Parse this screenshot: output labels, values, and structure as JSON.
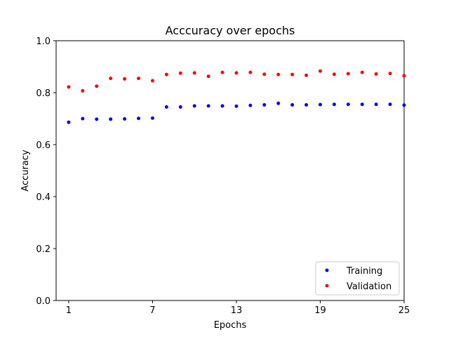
{
  "chart_data": {
    "type": "scatter",
    "title": "Acccuracy over epochs",
    "xlabel": "Epochs",
    "ylabel": "Accuracy",
    "xlim": [
      0.1,
      25
    ],
    "ylim": [
      0.0,
      1.0
    ],
    "xticks": [
      1,
      7,
      13,
      19,
      25
    ],
    "yticks": [
      0.0,
      0.2,
      0.4,
      0.6,
      0.8,
      1.0
    ],
    "xtick_labels": [
      "1",
      "7",
      "13",
      "19",
      "25"
    ],
    "ytick_labels": [
      "0.0",
      "0.2",
      "0.4",
      "0.6",
      "0.8",
      "1.0"
    ],
    "grid": false,
    "legend_position": "lower-right",
    "x": [
      1,
      2,
      3,
      4,
      5,
      6,
      7,
      8,
      9,
      10,
      11,
      12,
      13,
      14,
      15,
      16,
      17,
      18,
      19,
      20,
      21,
      22,
      23,
      24,
      25
    ],
    "series": [
      {
        "name": "Training",
        "color": "#0000ff",
        "values": [
          0.686,
          0.7,
          0.698,
          0.698,
          0.699,
          0.701,
          0.702,
          0.745,
          0.745,
          0.749,
          0.749,
          0.749,
          0.748,
          0.751,
          0.753,
          0.759,
          0.753,
          0.753,
          0.754,
          0.755,
          0.755,
          0.755,
          0.755,
          0.755,
          0.752
        ]
      },
      {
        "name": "Validation",
        "color": "#ff0000",
        "values": [
          0.822,
          0.807,
          0.825,
          0.855,
          0.853,
          0.855,
          0.846,
          0.87,
          0.875,
          0.876,
          0.863,
          0.878,
          0.876,
          0.878,
          0.871,
          0.87,
          0.87,
          0.867,
          0.883,
          0.871,
          0.873,
          0.878,
          0.872,
          0.874,
          0.865
        ]
      }
    ]
  }
}
